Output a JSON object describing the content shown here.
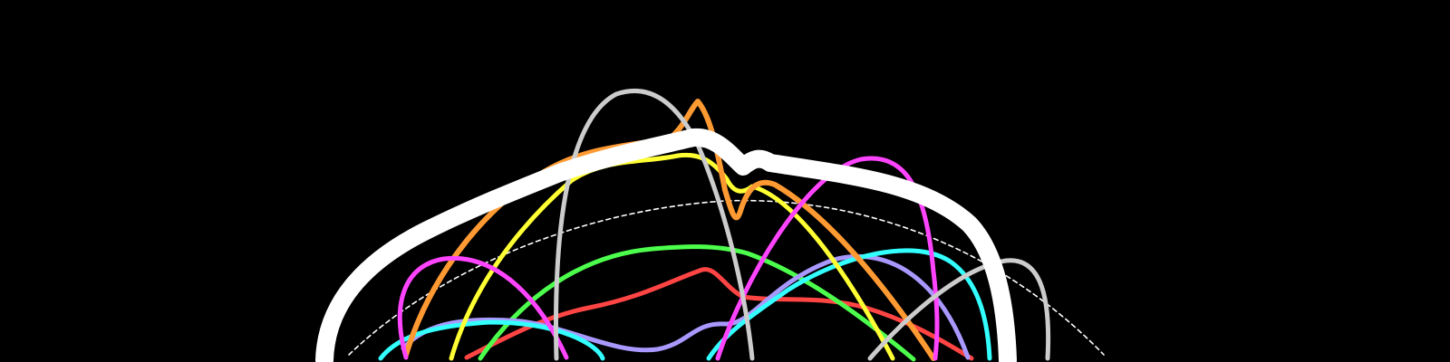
{
  "background": "#000000",
  "stroke_colors": {
    "outline": "#ffffff",
    "reference_arc": "#ffffff",
    "orange": "#ff9a33",
    "yellow": "#ffff33",
    "green": "#4dff4d",
    "red": "#ff4444",
    "lavender": "#a999ff",
    "cyan": "#33ffff",
    "magenta": "#ff44ff",
    "gray": "#cccccc"
  }
}
